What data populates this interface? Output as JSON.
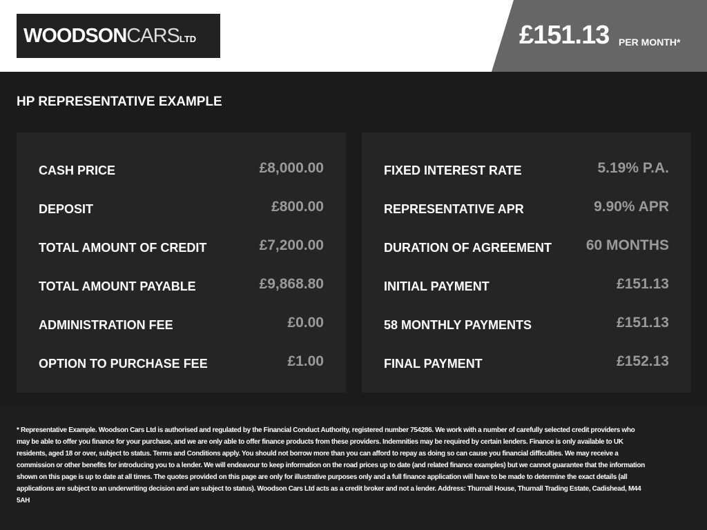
{
  "header": {
    "logo": {
      "bold": "WOODSON",
      "light": "CARS",
      "suffix": "LTD"
    },
    "price": "£151.13",
    "per_month": "PER MONTH*"
  },
  "title": "HP REPRESENTATIVE EXAMPLE",
  "left_panel": [
    {
      "label": "CASH PRICE",
      "value": "£8,000.00"
    },
    {
      "label": "DEPOSIT",
      "value": "£800.00"
    },
    {
      "label": "TOTAL AMOUNT OF CREDIT",
      "value": "£7,200.00"
    },
    {
      "label": "TOTAL AMOUNT PAYABLE",
      "value": "£9,868.80"
    },
    {
      "label": "ADMINISTRATION FEE",
      "value": "£0.00"
    },
    {
      "label": "OPTION TO PURCHASE FEE",
      "value": "£1.00"
    }
  ],
  "right_panel": [
    {
      "label": "FIXED INTEREST RATE",
      "value": "5.19% P.A."
    },
    {
      "label": "REPRESENTATIVE APR",
      "value": "9.90% APR"
    },
    {
      "label": "DURATION OF AGREEMENT",
      "value": "60 MONTHS"
    },
    {
      "label": "INITIAL PAYMENT",
      "value": "£151.13"
    },
    {
      "label": "58 MONTHLY PAYMENTS",
      "value": "£151.13"
    },
    {
      "label": "FINAL PAYMENT",
      "value": "£152.13"
    }
  ],
  "disclaimer": "* Representative Example. Woodson Cars Ltd is authorised and regulated by the Financial Conduct Authority, registered number 754286. We work with a number of carefully selected credit providers who may be able to offer you finance for your purchase, and we are only able to offer finance products from these providers. Indemnities may be required by certain lenders. Finance is only available to UK residents, aged 18 or over, subject to status. Terms and Conditions apply. You should not borrow more than you can afford to repay as doing so can cause you financial difficulties. We may receive a commission or other benefits for introducing you to a lender. We will endeavour to keep information on the road prices up to date (and related finance examples) but we cannot guarantee that the information shown on this page is up to date at all times. The quotes provided on this page are only for illustrative purposes only and a full finance application will have to be made to determine the exact details (all applications are subject to an underwriting decision and are subject to status). Woodson Cars Ltd acts as a credit broker and not a lender. Address: Thurnall House, Thurnall Trading Estate, Cadishead, M44 5AH"
}
